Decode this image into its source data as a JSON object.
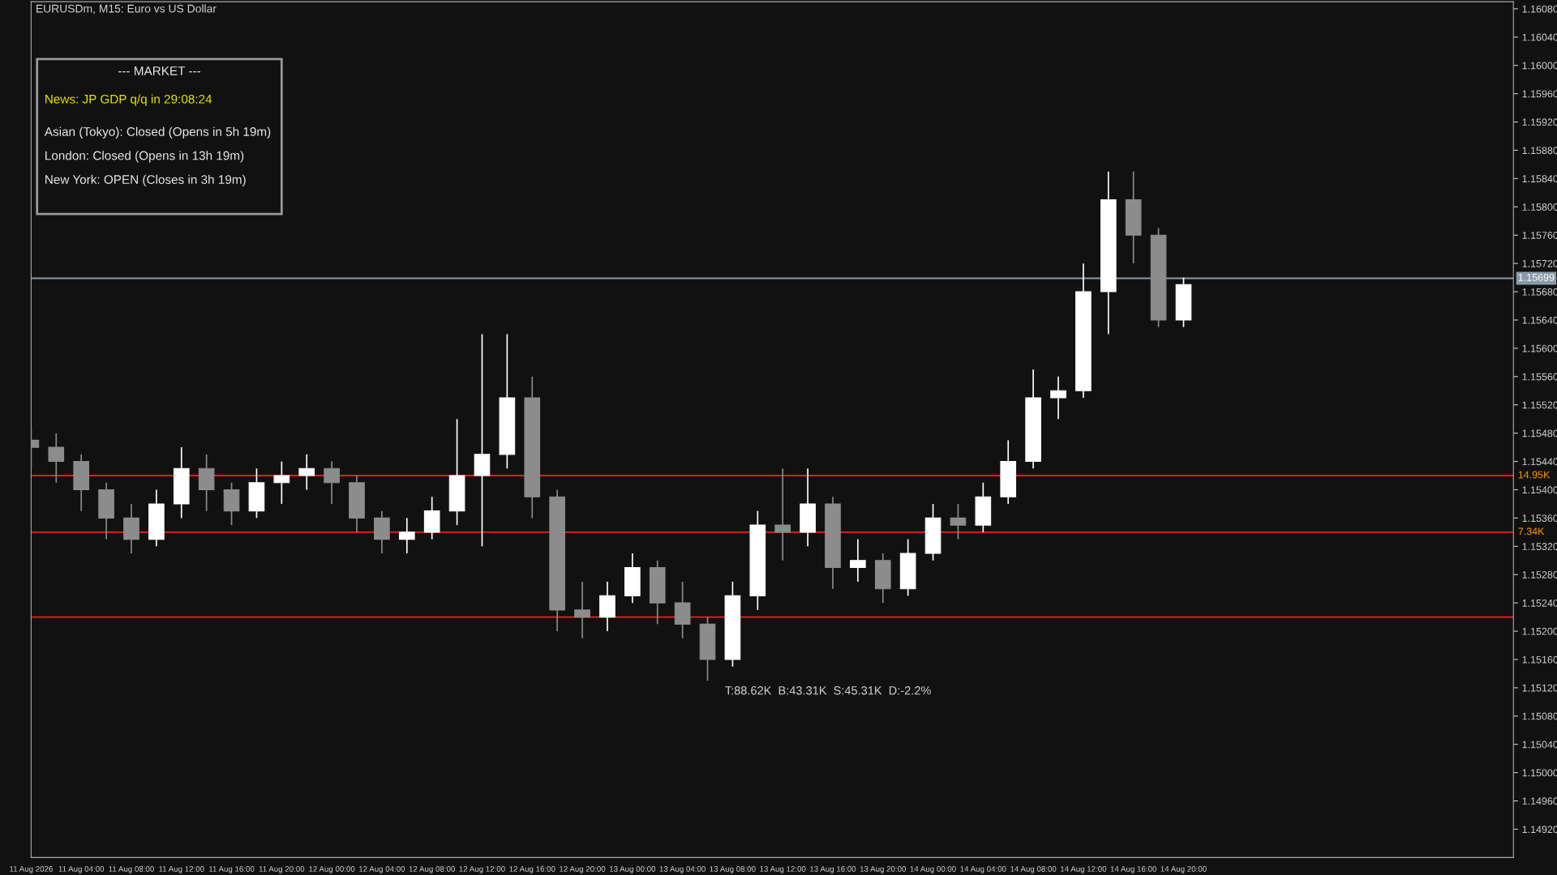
{
  "chart_data": {
    "type": "candlestick",
    "title": "EURUSDm, M15: Euro vs US Dollar",
    "x": [
      "2026-08-11T00:00",
      "2026-08-11T02:00",
      "2026-08-11T04:00",
      "2026-08-11T06:00",
      "2026-08-11T08:00",
      "2026-08-11T10:00",
      "2026-08-11T12:00",
      "2026-08-11T14:00",
      "2026-08-11T16:00",
      "2026-08-11T18:00",
      "2026-08-11T20:00",
      "2026-08-11T22:00",
      "2026-08-12T00:00",
      "2026-08-12T02:00",
      "2026-08-12T04:00",
      "2026-08-12T06:00",
      "2026-08-12T08:00",
      "2026-08-12T10:00",
      "2026-08-12T12:00",
      "2026-08-12T14:00",
      "2026-08-12T16:00",
      "2026-08-12T18:00",
      "2026-08-12T20:00",
      "2026-08-12T22:00",
      "2026-08-13T00:00",
      "2026-08-13T02:00",
      "2026-08-13T04:00",
      "2026-08-13T06:00",
      "2026-08-13T08:00",
      "2026-08-13T10:00",
      "2026-08-13T12:00",
      "2026-08-13T14:00",
      "2026-08-13T16:00",
      "2026-08-13T18:00",
      "2026-08-13T20:00",
      "2026-08-13T22:00",
      "2026-08-14T00:00",
      "2026-08-14T02:00",
      "2026-08-14T04:00",
      "2026-08-14T06:00",
      "2026-08-14T08:00",
      "2026-08-14T10:00",
      "2026-08-14T12:00",
      "2026-08-14T14:00",
      "2026-08-14T16:00",
      "2026-08-14T18:00",
      "2026-08-14T20:00"
    ],
    "ohlc": [
      [
        1.1547,
        1.1549,
        1.1543,
        1.1546
      ],
      [
        1.1546,
        1.1548,
        1.1541,
        1.1544
      ],
      [
        1.1544,
        1.1545,
        1.1537,
        1.154
      ],
      [
        1.154,
        1.1541,
        1.1533,
        1.1536
      ],
      [
        1.1536,
        1.1538,
        1.1531,
        1.1533
      ],
      [
        1.1533,
        1.154,
        1.1532,
        1.1538
      ],
      [
        1.1538,
        1.1546,
        1.1536,
        1.1543
      ],
      [
        1.1543,
        1.1545,
        1.1537,
        1.154
      ],
      [
        1.154,
        1.1541,
        1.1535,
        1.1537
      ],
      [
        1.1537,
        1.1543,
        1.1536,
        1.1541
      ],
      [
        1.1541,
        1.1544,
        1.1538,
        1.1542
      ],
      [
        1.1542,
        1.1545,
        1.154,
        1.1543
      ],
      [
        1.1543,
        1.1544,
        1.1538,
        1.1541
      ],
      [
        1.1541,
        1.1542,
        1.1534,
        1.1536
      ],
      [
        1.1536,
        1.1537,
        1.1531,
        1.1533
      ],
      [
        1.1533,
        1.1536,
        1.1531,
        1.1534
      ],
      [
        1.1534,
        1.1539,
        1.1533,
        1.1537
      ],
      [
        1.1537,
        1.155,
        1.1535,
        1.1542
      ],
      [
        1.1542,
        1.1562,
        1.1532,
        1.1545
      ],
      [
        1.1545,
        1.1562,
        1.1543,
        1.1553
      ],
      [
        1.1553,
        1.1556,
        1.1536,
        1.1539
      ],
      [
        1.1539,
        1.154,
        1.152,
        1.1523
      ],
      [
        1.1523,
        1.1527,
        1.1519,
        1.1522
      ],
      [
        1.1522,
        1.1527,
        1.152,
        1.1525
      ],
      [
        1.1525,
        1.1531,
        1.1524,
        1.1529
      ],
      [
        1.1529,
        1.153,
        1.1521,
        1.1524
      ],
      [
        1.1524,
        1.1527,
        1.1519,
        1.1521
      ],
      [
        1.1521,
        1.1522,
        1.1513,
        1.1516
      ],
      [
        1.1516,
        1.1527,
        1.1515,
        1.1525
      ],
      [
        1.1525,
        1.1537,
        1.1523,
        1.1535
      ],
      [
        1.1535,
        1.1543,
        1.153,
        1.1534
      ],
      [
        1.1534,
        1.1543,
        1.1532,
        1.1538
      ],
      [
        1.1538,
        1.1539,
        1.1526,
        1.1529
      ],
      [
        1.1529,
        1.1533,
        1.1527,
        1.153
      ],
      [
        1.153,
        1.1531,
        1.1524,
        1.1526
      ],
      [
        1.1526,
        1.1533,
        1.1525,
        1.1531
      ],
      [
        1.1531,
        1.1538,
        1.153,
        1.1536
      ],
      [
        1.1536,
        1.1538,
        1.1533,
        1.1535
      ],
      [
        1.1535,
        1.1541,
        1.1534,
        1.1539
      ],
      [
        1.1539,
        1.1547,
        1.1538,
        1.1544
      ],
      [
        1.1544,
        1.1557,
        1.1543,
        1.1553
      ],
      [
        1.1553,
        1.1556,
        1.155,
        1.1554
      ],
      [
        1.1554,
        1.1572,
        1.1553,
        1.1568
      ],
      [
        1.1568,
        1.1585,
        1.1562,
        1.1581
      ],
      [
        1.1581,
        1.1585,
        1.1572,
        1.1576
      ],
      [
        1.1576,
        1.1577,
        1.1563,
        1.1564
      ],
      [
        1.1564,
        1.157,
        1.1563,
        1.1569
      ]
    ],
    "xlim": [
      "2026-08-11T00:00",
      "2026-08-15T22:20"
    ],
    "ylim": [
      1.1488,
      1.1609
    ],
    "xticks": [
      {
        "value": "2026-08-11T00:00",
        "label": "11 Aug 2026"
      },
      {
        "value": "2026-08-11T04:00",
        "label": "11 Aug 04:00"
      },
      {
        "value": "2026-08-11T08:00",
        "label": "11 Aug 08:00"
      },
      {
        "value": "2026-08-11T12:00",
        "label": "11 Aug 12:00"
      },
      {
        "value": "2026-08-11T16:00",
        "label": "11 Aug 16:00"
      },
      {
        "value": "2026-08-11T20:00",
        "label": "11 Aug 20:00"
      },
      {
        "value": "2026-08-12T00:00",
        "label": "12 Aug 00:00"
      },
      {
        "value": "2026-08-12T04:00",
        "label": "12 Aug 04:00"
      },
      {
        "value": "2026-08-12T08:00",
        "label": "12 Aug 08:00"
      },
      {
        "value": "2026-08-12T12:00",
        "label": "12 Aug 12:00"
      },
      {
        "value": "2026-08-12T16:00",
        "label": "12 Aug 16:00"
      },
      {
        "value": "2026-08-12T20:00",
        "label": "12 Aug 20:00"
      },
      {
        "value": "2026-08-13T00:00",
        "label": "13 Aug 00:00"
      },
      {
        "value": "2026-08-13T04:00",
        "label": "13 Aug 04:00"
      },
      {
        "value": "2026-08-13T08:00",
        "label": "13 Aug 08:00"
      },
      {
        "value": "2026-08-13T12:00",
        "label": "13 Aug 12:00"
      },
      {
        "value": "2026-08-13T16:00",
        "label": "13 Aug 16:00"
      },
      {
        "value": "2026-08-13T20:00",
        "label": "13 Aug 20:00"
      },
      {
        "value": "2026-08-14T00:00",
        "label": "14 Aug 00:00"
      },
      {
        "value": "2026-08-14T04:00",
        "label": "14 Aug 04:00"
      },
      {
        "value": "2026-08-14T08:00",
        "label": "14 Aug 08:00"
      },
      {
        "value": "2026-08-14T12:00",
        "label": "14 Aug 12:00"
      },
      {
        "value": "2026-08-14T16:00",
        "label": "14 Aug 16:00"
      },
      {
        "value": "2026-08-14T20:00",
        "label": "14 Aug 20:00"
      }
    ],
    "yticks": [
      {
        "value": 1.1492,
        "label": "1.14920"
      },
      {
        "value": 1.1496,
        "label": "1.14960"
      },
      {
        "value": 1.15,
        "label": "1.15000"
      },
      {
        "value": 1.1504,
        "label": "1.15040"
      },
      {
        "value": 1.1508,
        "label": "1.15080"
      },
      {
        "value": 1.1512,
        "label": "1.15120"
      },
      {
        "value": 1.1516,
        "label": "1.15160"
      },
      {
        "value": 1.152,
        "label": "1.15200"
      },
      {
        "value": 1.1524,
        "label": "1.15240"
      },
      {
        "value": 1.1528,
        "label": "1.15280"
      },
      {
        "value": 1.1532,
        "label": "1.15320"
      },
      {
        "value": 1.1536,
        "label": "1.15360"
      },
      {
        "value": 1.154,
        "label": "1.15400"
      },
      {
        "value": 1.1544,
        "label": "1.15440"
      },
      {
        "value": 1.1548,
        "label": "1.15480"
      },
      {
        "value": 1.1552,
        "label": "1.15520"
      },
      {
        "value": 1.1556,
        "label": "1.15560"
      },
      {
        "value": 1.156,
        "label": "1.15600"
      },
      {
        "value": 1.1564,
        "label": "1.15640"
      },
      {
        "value": 1.1568,
        "label": "1.15680"
      },
      {
        "value": 1.1572,
        "label": "1.15720"
      },
      {
        "value": 1.1576,
        "label": "1.15760"
      },
      {
        "value": 1.158,
        "label": "1.15800"
      },
      {
        "value": 1.1584,
        "label": "1.15840"
      },
      {
        "value": 1.1588,
        "label": "1.15880"
      },
      {
        "value": 1.1592,
        "label": "1.15920"
      },
      {
        "value": 1.1596,
        "label": "1.15960"
      },
      {
        "value": 1.16,
        "label": "1.16000"
      },
      {
        "value": 1.1604,
        "label": "1.16040"
      },
      {
        "value": 1.1608,
        "label": "1.16080"
      }
    ],
    "ref_lines": [
      {
        "axis": "y",
        "value": 1.15699,
        "label": "1.15699",
        "color": "#8a9aa8"
      },
      {
        "axis": "y",
        "value": 1.1542,
        "label": "14.95K",
        "color": "#ff1a1a"
      },
      {
        "axis": "y",
        "value": 1.1534,
        "label": "7.34K",
        "color": "#ff1a1a"
      },
      {
        "axis": "y",
        "value": 1.1522,
        "color": "#ff1a1a"
      }
    ],
    "annotations": [
      "--- MARKET ---",
      "News: JP GDP q/q in 29:08:24",
      "Asian (Tokyo): Closed (Opens in 5h 19m)",
      "London: Closed (Opens in 13h 19m)",
      "New York: OPEN (Closes in 3h 19m)",
      "T:88.62K  B:43.31K  S:45.31K  D:-2.2%"
    ],
    "grid": false
  }
}
